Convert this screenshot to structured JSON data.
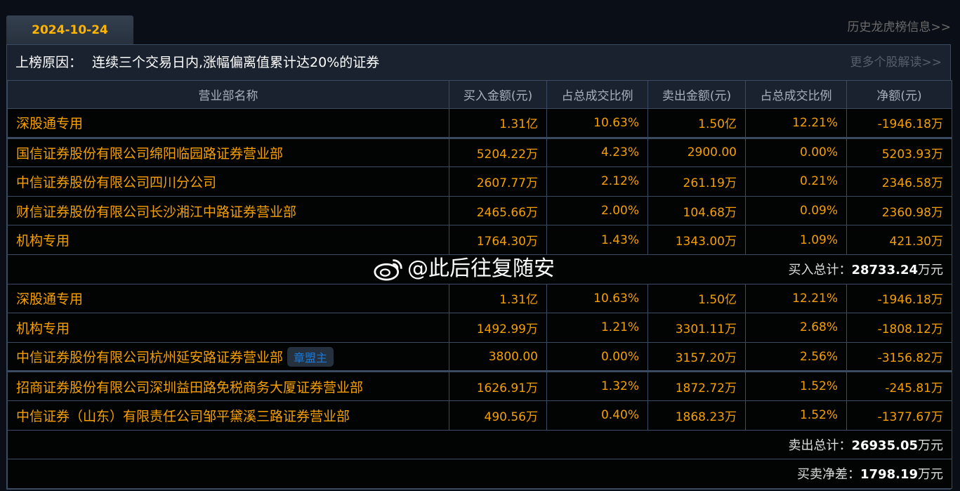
{
  "date_tab": "2024-10-24",
  "history_link": "历史龙虎榜信息>>",
  "reason_label": "上榜原因：",
  "reason_text": "连续三个交易日内,涨幅偏离值累计达20%的证券",
  "more_link": "更多个股解读>>",
  "columns": [
    "营业部名称",
    "买入金额(元)",
    "占总成交比例",
    "卖出金额(元)",
    "占总成交比例",
    "净额(元)"
  ],
  "buy_rows": [
    [
      "深股通专用",
      "1.31亿",
      "10.63%",
      "1.50亿",
      "12.21%",
      "-1946.18万"
    ],
    [
      "国信证券股份有限公司绵阳临园路证券营业部",
      "5204.22万",
      "4.23%",
      "2900.00",
      "0.00%",
      "5203.93万"
    ],
    [
      "中信证券股份有限公司四川分公司",
      "2607.77万",
      "2.12%",
      "261.19万",
      "0.21%",
      "2346.58万"
    ],
    [
      "财信证券股份有限公司长沙湘江中路证券营业部",
      "2465.66万",
      "2.00%",
      "104.68万",
      "0.09%",
      "2360.98万"
    ],
    [
      "机构专用",
      "1764.30万",
      "1.43%",
      "1343.00万",
      "1.09%",
      "421.30万"
    ]
  ],
  "buy_total": {
    "label": "买入总计：",
    "value": "28733.24",
    "unit": "万元"
  },
  "sell_rows": [
    [
      "深股通专用",
      "1.31亿",
      "10.63%",
      "1.50亿",
      "12.21%",
      "-1946.18万"
    ],
    [
      "机构专用",
      "1492.99万",
      "1.21%",
      "3301.11万",
      "2.68%",
      "-1808.12万"
    ],
    [
      "中信证券股份有限公司杭州延安路证券营业部",
      "3800.00",
      "0.00%",
      "3157.20万",
      "2.56%",
      "-3156.82万"
    ],
    [
      "招商证券股份有限公司深圳益田路免税商务大厦证券营业部",
      "1626.91万",
      "1.32%",
      "1872.72万",
      "1.52%",
      "-245.81万"
    ],
    [
      "中信证券（山东）有限责任公司邹平黛溪三路证券营业部",
      "490.56万",
      "0.40%",
      "1868.23万",
      "1.52%",
      "-1377.67万"
    ]
  ],
  "sell_badge": {
    "row": 2,
    "label": "章盟主"
  },
  "sell_total": {
    "label": "卖出总计：",
    "value": "26935.05",
    "unit": "万元"
  },
  "net_total": {
    "label": "买卖净差：",
    "value": "1798.19",
    "unit": "万元"
  },
  "watermark": "@此后往复随安",
  "colors": {
    "accent": "#f5a000",
    "header_bg": "#1a2230",
    "border": "#3a4a60",
    "badge": "#1a7ad8"
  }
}
